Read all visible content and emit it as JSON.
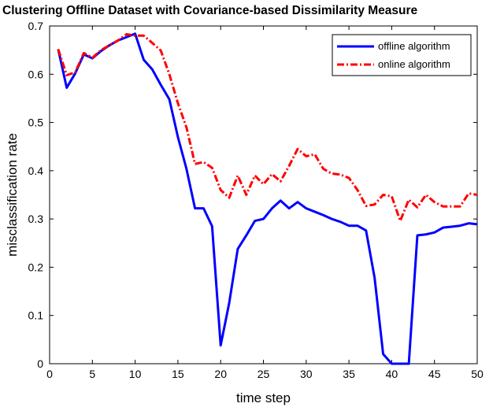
{
  "chart_data": {
    "type": "line",
    "title": "Clustering Offline Dataset with Covariance-based Dissimilarity Measure",
    "xlabel": "time step",
    "ylabel": "misclassification rate",
    "xlim": [
      0,
      50
    ],
    "ylim": [
      0,
      0.7
    ],
    "xticks": [
      0,
      5,
      10,
      15,
      20,
      25,
      30,
      35,
      40,
      45,
      50
    ],
    "yticks": [
      0,
      0.1,
      0.2,
      0.3,
      0.4,
      0.5,
      0.6,
      0.7
    ],
    "xtick_labels": [
      "0",
      "5",
      "10",
      "15",
      "20",
      "25",
      "30",
      "35",
      "40",
      "45",
      "50"
    ],
    "ytick_labels": [
      "0",
      "0.1",
      "0.2",
      "0.3",
      "0.4",
      "0.5",
      "0.6",
      "0.7"
    ],
    "grid": false,
    "legend_position": "top-right",
    "x": [
      1,
      2,
      3,
      4,
      5,
      6,
      7,
      8,
      9,
      10,
      11,
      12,
      13,
      14,
      15,
      16,
      17,
      18,
      19,
      20,
      21,
      22,
      23,
      24,
      25,
      26,
      27,
      28,
      29,
      30,
      31,
      32,
      33,
      34,
      35,
      36,
      37,
      38,
      39,
      40,
      41,
      42,
      43,
      44,
      45,
      46,
      47,
      48,
      49,
      50
    ],
    "series": [
      {
        "name": "offline algorithm",
        "color": "#0000ff",
        "style": "solid",
        "values": [
          0.652,
          0.572,
          0.602,
          0.641,
          0.633,
          0.648,
          0.66,
          0.67,
          0.677,
          0.684,
          0.63,
          0.61,
          0.578,
          0.548,
          0.47,
          0.404,
          0.322,
          0.322,
          0.285,
          0.038,
          0.126,
          0.238,
          0.266,
          0.296,
          0.3,
          0.322,
          0.338,
          0.322,
          0.335,
          0.322,
          0.315,
          0.308,
          0.3,
          0.294,
          0.286,
          0.286,
          0.276,
          0.178,
          0.02,
          0.0,
          0.0,
          0.0,
          0.266,
          0.268,
          0.272,
          0.282,
          0.284,
          0.286,
          0.291,
          0.289
        ]
      },
      {
        "name": "online algorithm",
        "color": "#ff0000",
        "style": "dash-dot",
        "values": [
          0.652,
          0.598,
          0.604,
          0.644,
          0.634,
          0.65,
          0.66,
          0.67,
          0.683,
          0.68,
          0.68,
          0.665,
          0.649,
          0.6,
          0.54,
          0.49,
          0.414,
          0.418,
          0.406,
          0.36,
          0.344,
          0.39,
          0.35,
          0.39,
          0.372,
          0.393,
          0.378,
          0.41,
          0.445,
          0.43,
          0.434,
          0.404,
          0.394,
          0.392,
          0.385,
          0.36,
          0.327,
          0.33,
          0.35,
          0.347,
          0.296,
          0.34,
          0.324,
          0.35,
          0.335,
          0.326,
          0.326,
          0.326,
          0.353,
          0.35
        ]
      }
    ]
  }
}
